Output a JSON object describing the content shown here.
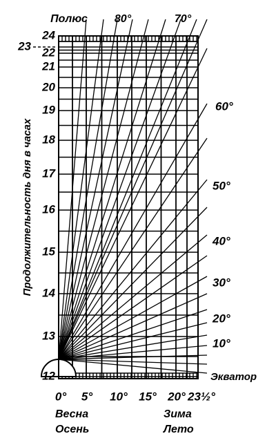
{
  "top_labels": [
    "Полюс",
    "80°",
    "70°"
  ],
  "right_labels": [
    "60°",
    "50°",
    "40°",
    "30°",
    "20°",
    "10°",
    "Экватор"
  ],
  "y_axis": {
    "title": "Продолжительность дня в часах",
    "labels": [
      "24",
      "23",
      "22",
      "21",
      "20",
      "19",
      "18",
      "17",
      "16",
      "15",
      "14",
      "13",
      "12"
    ]
  },
  "x_axis": {
    "labels": [
      "0°",
      "5°",
      "10°",
      "15°",
      "20°",
      "23½°"
    ]
  },
  "seasons": [
    [
      "Весна",
      "Осень"
    ],
    [
      "Зима",
      "Лето"
    ]
  ]
}
